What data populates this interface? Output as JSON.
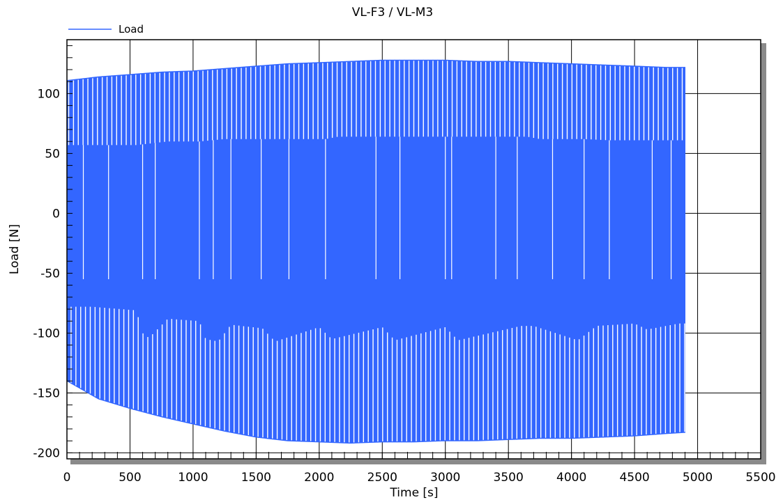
{
  "chart_data": {
    "type": "line",
    "title": "VL-F3 / VL-M3",
    "xlabel": "Time [s]",
    "ylabel": "Load [N]",
    "xlim": [
      0,
      5500
    ],
    "ylim": [
      -205,
      145
    ],
    "x_ticks": [
      0,
      500,
      1000,
      1500,
      2000,
      2500,
      3000,
      3500,
      4000,
      4500,
      5000,
      5500
    ],
    "x_tick_labels": [
      "0",
      "500",
      "1000",
      "1500",
      "2000",
      "2500",
      "3000",
      "3500",
      "4000",
      "4500",
      "5000",
      "5500"
    ],
    "y_ticks": [
      -200,
      -150,
      -100,
      -50,
      0,
      50,
      100
    ],
    "y_tick_labels": [
      "-200",
      "-150",
      "-100",
      "-50",
      "0",
      "50",
      "100"
    ],
    "grid": true,
    "legend_position": "top-left",
    "series": [
      {
        "name": "Load",
        "color": "#3366ff",
        "x_range": [
          0,
          4900
        ],
        "upper_envelope": {
          "x": [
            0,
            250,
            500,
            750,
            1000,
            1250,
            1500,
            1750,
            2000,
            2250,
            2500,
            2750,
            3000,
            3250,
            3500,
            3750,
            4000,
            4250,
            4500,
            4750,
            4900
          ],
          "y": [
            111,
            114,
            116,
            118,
            119,
            121,
            123,
            125,
            126,
            127,
            128,
            128,
            128,
            127,
            127,
            126,
            125,
            124,
            123,
            122,
            122
          ]
        },
        "lower_envelope": {
          "x": [
            0,
            250,
            500,
            750,
            1000,
            1250,
            1500,
            1750,
            2000,
            2250,
            2500,
            2750,
            3000,
            3250,
            3500,
            3750,
            4000,
            4250,
            4500,
            4750,
            4900
          ],
          "y": [
            -140,
            -155,
            -163,
            -170,
            -176,
            -182,
            -187,
            -190,
            -191,
            -192,
            -191,
            -191,
            -190,
            -190,
            -189,
            -188,
            -188,
            -187,
            -186,
            -184,
            -183
          ]
        },
        "inner_band_upper": {
          "x": [
            200,
            550,
            800,
            1050,
            1250,
            1600,
            1700,
            2050,
            2150,
            2550,
            2650,
            3050,
            3200,
            3650,
            3750,
            4100,
            4300,
            4650,
            4700,
            4850
          ],
          "y": [
            57,
            57,
            60,
            60,
            62,
            62,
            62,
            62,
            64,
            64,
            64,
            64,
            64,
            64,
            62,
            62,
            61,
            61,
            61,
            61
          ]
        },
        "inner_band_lower": {
          "x": [
            200,
            550,
            600,
            650,
            800,
            1050,
            1100,
            1200,
            1300,
            1550,
            1650,
            2000,
            2100,
            2500,
            2600,
            3000,
            3100,
            3600,
            3700,
            4050,
            4200,
            4500,
            4600,
            4850
          ],
          "y": [
            -78,
            -81,
            -100,
            -104,
            -88,
            -90,
            -105,
            -107,
            -93,
            -96,
            -107,
            -95,
            -105,
            -95,
            -106,
            -95,
            -106,
            -94,
            -94,
            -106,
            -94,
            -92,
            -97,
            -92
          ]
        }
      }
    ]
  }
}
